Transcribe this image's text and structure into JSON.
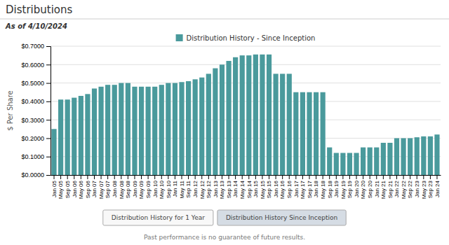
{
  "chart_data": {
    "type": "bar",
    "title": "Distributions",
    "subtitle": "As of 4/10/2024",
    "y_label": "$ Per Share",
    "categories": [
      "Jan 05",
      "May 05",
      "Sep 05",
      "Jan 06",
      "May 06",
      "Sep 06",
      "Jan 07",
      "May 07",
      "Sep 07",
      "Jan 08",
      "May 08",
      "Sep 08",
      "Jan 09",
      "May 09",
      "Sep 09",
      "Jan 10",
      "May 10",
      "Sep 10",
      "Jan 11",
      "May 11",
      "Sep 11",
      "Jan 12",
      "May 12",
      "Sep 12",
      "Jan 13",
      "May 13",
      "Sep 13",
      "Jan 14",
      "May 14",
      "Sep 14",
      "Jan 15",
      "May 15",
      "Sep 15",
      "Jan 16",
      "May 16",
      "Sep 16",
      "Jan 17",
      "May 17",
      "Sep 17",
      "Jan 18",
      "May 18",
      "Sep 18",
      "Jan 19",
      "May 19",
      "Sep 19",
      "Jan 20",
      "May 20",
      "Sep 20",
      "Jan 21",
      "May 21",
      "Sep 21",
      "Jan 22",
      "May 22",
      "Sep 22",
      "Jan 23",
      "May 23",
      "Sep 23",
      "Jan 24"
    ],
    "series": [
      {
        "name": "Distribution History - Since Inception",
        "color": "#4a9a9c",
        "values": [
          0.25,
          0.41,
          0.41,
          0.42,
          0.43,
          0.44,
          0.47,
          0.48,
          0.49,
          0.49,
          0.5,
          0.5,
          0.48,
          0.48,
          0.48,
          0.48,
          0.49,
          0.5,
          0.5,
          0.505,
          0.51,
          0.52,
          0.53,
          0.55,
          0.58,
          0.6,
          0.62,
          0.64,
          0.65,
          0.65,
          0.655,
          0.655,
          0.655,
          0.55,
          0.55,
          0.55,
          0.45,
          0.45,
          0.45,
          0.45,
          0.45,
          0.15,
          0.12,
          0.12,
          0.12,
          0.12,
          0.15,
          0.15,
          0.15,
          0.175,
          0.175,
          0.2,
          0.2,
          0.2,
          0.205,
          0.21,
          0.21,
          0.22
        ]
      }
    ],
    "ylim": [
      0,
      0.7
    ],
    "yticks": [
      {
        "value": 0.0,
        "label": "$0.0000"
      },
      {
        "value": 0.1,
        "label": "$0.1000"
      },
      {
        "value": 0.2,
        "label": "$0.2000"
      },
      {
        "value": 0.3,
        "label": "$0.3000"
      },
      {
        "value": 0.4,
        "label": "$0.4000"
      },
      {
        "value": 0.5,
        "label": "$0.5000"
      },
      {
        "value": 0.6,
        "label": "$0.6000"
      },
      {
        "value": 0.7,
        "label": "$0.7000"
      }
    ],
    "grid": true,
    "legend": "top",
    "buttons": [
      "Distribution History for 1 Year",
      "Distribution History Since Inception"
    ],
    "footer": "Past performance is no guarantee of future results."
  }
}
